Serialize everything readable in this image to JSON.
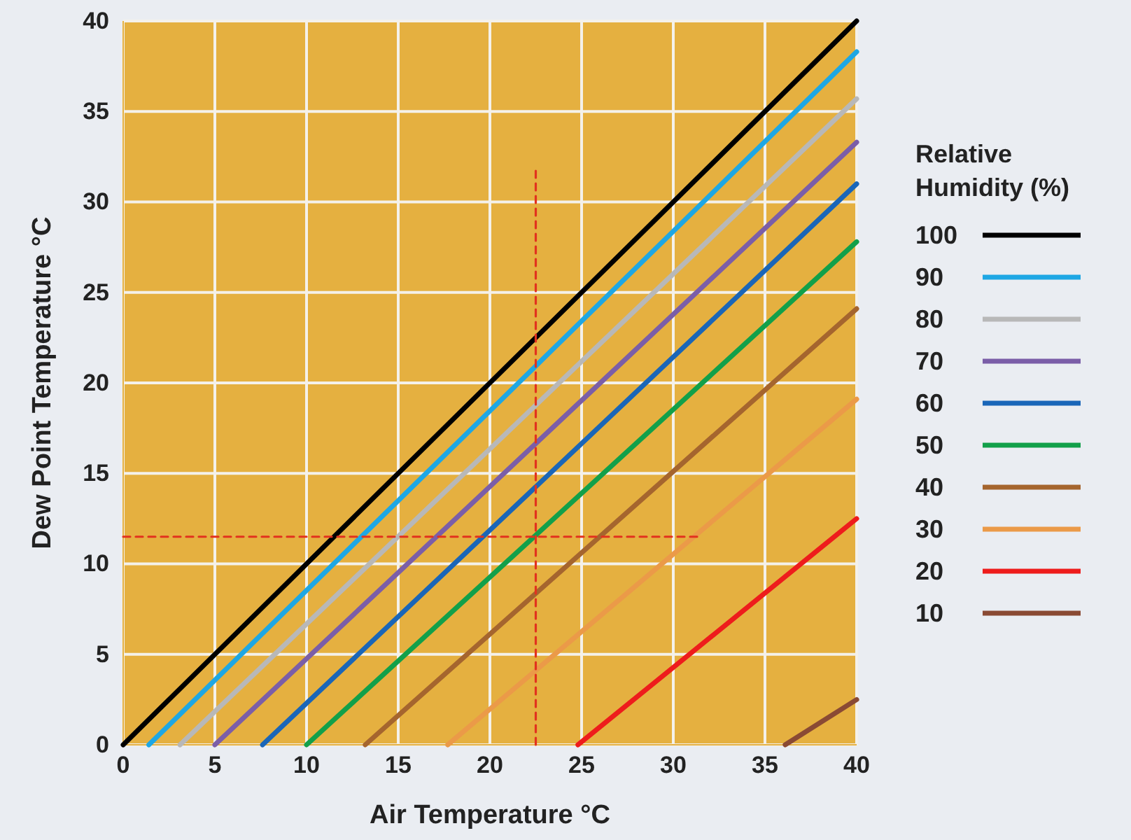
{
  "chart_data": {
    "type": "line",
    "xlabel": "Air Temperature °C",
    "ylabel": "Dew Point Temperature °C",
    "legend_title": "Relative Humidity (%)",
    "xlim": [
      0,
      40
    ],
    "ylim": [
      0,
      40
    ],
    "xticks": [
      0,
      5,
      10,
      15,
      20,
      25,
      30,
      35,
      40
    ],
    "yticks": [
      0,
      5,
      10,
      15,
      20,
      25,
      30,
      35,
      40
    ],
    "grid": true,
    "legend": "right",
    "line_style": "solid",
    "series": [
      {
        "name": "100",
        "color": "#000000",
        "x": [
          0,
          40
        ],
        "values": [
          0,
          40
        ]
      },
      {
        "name": "90",
        "color": "#1ea7e4",
        "x": [
          1.4,
          40
        ],
        "values": [
          0,
          38.3
        ]
      },
      {
        "name": "80",
        "color": "#b8b8b8",
        "x": [
          3.1,
          40
        ],
        "values": [
          0,
          35.7
        ]
      },
      {
        "name": "70",
        "color": "#7b5ea8",
        "x": [
          5,
          40
        ],
        "values": [
          0,
          33.3
        ]
      },
      {
        "name": "60",
        "color": "#1a66b8",
        "x": [
          7.6,
          40
        ],
        "values": [
          0,
          31
        ]
      },
      {
        "name": "50",
        "color": "#12a04a",
        "x": [
          10,
          40
        ],
        "values": [
          0,
          27.8
        ]
      },
      {
        "name": "40",
        "color": "#a5652e",
        "x": [
          13.2,
          40
        ],
        "values": [
          0,
          24.1
        ]
      },
      {
        "name": "30",
        "color": "#eb9a48",
        "x": [
          17.7,
          40
        ],
        "values": [
          0,
          19.1
        ]
      },
      {
        "name": "20",
        "color": "#ee1c1c",
        "x": [
          24.8,
          40
        ],
        "values": [
          0,
          12.5
        ]
      },
      {
        "name": "10",
        "color": "#8a4a34",
        "x": [
          36.1,
          40
        ],
        "values": [
          0,
          2.5
        ]
      },
      {
        "color": "#e2321e",
        "line_style": "dashed",
        "x": [
          22.5,
          22.5
        ],
        "values": [
          0,
          32
        ]
      },
      {
        "color": "#e2321e",
        "line_style": "dashed",
        "x": [
          0,
          31.4
        ],
        "values": [
          11.5,
          11.5
        ]
      }
    ]
  }
}
